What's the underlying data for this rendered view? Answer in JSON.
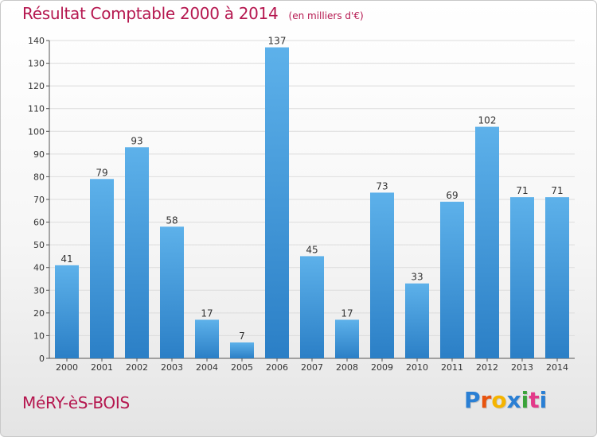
{
  "header": {
    "title": "Résultat Comptable 2000 à 2014",
    "unit": "(en milliers d'€)"
  },
  "footer": {
    "commune": "MéRY-èS-BOIS",
    "logo_text": "Proxiti",
    "logo_colors": [
      "#2a7fd4",
      "#e8540f",
      "#f5b400",
      "#2a7fd4",
      "#3aa33a",
      "#e33a8a",
      "#2a7fd4"
    ]
  },
  "chart_data": {
    "type": "bar",
    "categories": [
      "2000",
      "2001",
      "2002",
      "2003",
      "2004",
      "2005",
      "2006",
      "2007",
      "2008",
      "2009",
      "2010",
      "2011",
      "2012",
      "2013",
      "2014"
    ],
    "values": [
      41,
      79,
      93,
      58,
      17,
      7,
      137,
      45,
      17,
      73,
      33,
      69,
      102,
      71,
      71
    ],
    "ylim": [
      0,
      140
    ],
    "yticks": [
      0,
      10,
      20,
      30,
      40,
      50,
      60,
      70,
      80,
      90,
      100,
      110,
      120,
      130,
      140
    ],
    "grid": true,
    "bar_color": "#3f98dc",
    "data_labels": true
  }
}
